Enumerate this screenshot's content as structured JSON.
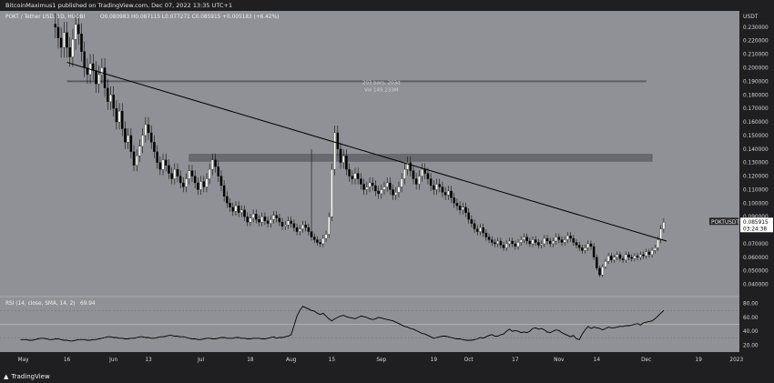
{
  "publisher": "BitcoinMaximus1 published on TradingView.com, Dec 07, 2022 13:35 UTC+1",
  "branding": "TradingView",
  "colors": {
    "background": "#909196",
    "up_candle": "#ffffff",
    "down_candle": "#000000",
    "trendline": "#000000",
    "zone": "#5f6066",
    "rsi_line": "#000000",
    "price_tag": "#ffffff"
  },
  "chart_data": [
    {
      "type": "candlestick",
      "symbol_line": {
        "title": "POKT / Tether USD, 1D, HUOBI",
        "ohlc": "O0.080983  H0.087115  L0.077271  C0.085915  +0.005183 (+6.42%)"
      },
      "price_scale": {
        "currency": "USDT",
        "ylim": [
          0.031,
          0.242
        ],
        "ticks": [
          "0.230000",
          "0.220000",
          "0.210000",
          "0.200000",
          "0.190000",
          "0.180000",
          "0.170000",
          "0.160000",
          "0.150000",
          "0.140000",
          "0.130000",
          "0.120000",
          "0.110000",
          "0.100000",
          "0.090000",
          "0.080000",
          "0.070000",
          "0.060000",
          "0.050000",
          "0.040000"
        ]
      },
      "last_price": {
        "symbol": "POKTUSDT",
        "value": "0.085915",
        "countdown": "03:24:38",
        "price": 0.085915
      },
      "measure": {
        "line1": "203 bars, 203d",
        "line2": "Vol 149.233M",
        "value_price": 0.188
      },
      "horizontal_lines": [
        {
          "price": 0.19,
          "from": "2022-05-16",
          "to": "2022-12-01"
        }
      ],
      "zones": [
        {
          "from_price": 0.131,
          "to_price": 0.136,
          "from": "2022-06-27",
          "to": "2022-12-03"
        }
      ],
      "trendline": {
        "start": [
          "2022-05-16",
          0.204
        ],
        "end": [
          "2022-12-08",
          0.072
        ]
      },
      "x_ticks": [
        "May",
        "16",
        "Jun",
        "13",
        "Jul",
        "18",
        "Aug",
        "15",
        "Sep",
        "19",
        "Oct",
        "17",
        "Nov",
        "14",
        "Dec",
        "19",
        "2023"
      ],
      "x_tick_dates": [
        "2022-05-01",
        "2022-05-16",
        "2022-06-01",
        "2022-06-13",
        "2022-07-01",
        "2022-07-18",
        "2022-08-01",
        "2022-08-15",
        "2022-09-01",
        "2022-09-19",
        "2022-10-01",
        "2022-10-17",
        "2022-11-01",
        "2022-11-14",
        "2022-12-01",
        "2022-12-19",
        "2023-01-01"
      ],
      "x_range": [
        "2022-04-23",
        "2023-01-02"
      ],
      "first_date": "2022-05-12",
      "closes": [
        0.23,
        0.222,
        0.215,
        0.226,
        0.215,
        0.208,
        0.221,
        0.232,
        0.225,
        0.212,
        0.2,
        0.195,
        0.203,
        0.198,
        0.188,
        0.195,
        0.2,
        0.185,
        0.175,
        0.18,
        0.17,
        0.16,
        0.168,
        0.155,
        0.145,
        0.15,
        0.138,
        0.128,
        0.135,
        0.142,
        0.15,
        0.158,
        0.152,
        0.145,
        0.138,
        0.13,
        0.125,
        0.132,
        0.128,
        0.122,
        0.118,
        0.125,
        0.12,
        0.115,
        0.112,
        0.118,
        0.124,
        0.12,
        0.115,
        0.11,
        0.116,
        0.112,
        0.118,
        0.125,
        0.132,
        0.127,
        0.12,
        0.113,
        0.105,
        0.1,
        0.097,
        0.094,
        0.098,
        0.093,
        0.095,
        0.09,
        0.086,
        0.089,
        0.092,
        0.088,
        0.086,
        0.09,
        0.087,
        0.085,
        0.088,
        0.091,
        0.089,
        0.086,
        0.083,
        0.084,
        0.087,
        0.085,
        0.082,
        0.079,
        0.081,
        0.084,
        0.082,
        0.079,
        0.075,
        0.073,
        0.071,
        0.07,
        0.074,
        0.077,
        0.09,
        0.125,
        0.152,
        0.14,
        0.13,
        0.135,
        0.125,
        0.12,
        0.118,
        0.122,
        0.118,
        0.114,
        0.11,
        0.112,
        0.115,
        0.113,
        0.109,
        0.107,
        0.11,
        0.112,
        0.115,
        0.11,
        0.106,
        0.108,
        0.112,
        0.118,
        0.125,
        0.13,
        0.124,
        0.118,
        0.114,
        0.12,
        0.125,
        0.122,
        0.118,
        0.113,
        0.11,
        0.114,
        0.112,
        0.108,
        0.106,
        0.109,
        0.104,
        0.1,
        0.098,
        0.095,
        0.097,
        0.093,
        0.088,
        0.085,
        0.081,
        0.079,
        0.082,
        0.078,
        0.075,
        0.073,
        0.071,
        0.07,
        0.072,
        0.069,
        0.067,
        0.07,
        0.072,
        0.07,
        0.068,
        0.071,
        0.073,
        0.075,
        0.072,
        0.07,
        0.073,
        0.071,
        0.069,
        0.07,
        0.074,
        0.072,
        0.07,
        0.072,
        0.075,
        0.073,
        0.071,
        0.073,
        0.076,
        0.074,
        0.071,
        0.069,
        0.067,
        0.065,
        0.067,
        0.07,
        0.068,
        0.06,
        0.052,
        0.047,
        0.053,
        0.057,
        0.061,
        0.058,
        0.06,
        0.062,
        0.059,
        0.058,
        0.062,
        0.06,
        0.059,
        0.061,
        0.06,
        0.062,
        0.061,
        0.064,
        0.062,
        0.065,
        0.067,
        0.073,
        0.081,
        0.0859
      ]
    },
    {
      "type": "line",
      "title": "RSI (14, close, SMA, 14, 2)",
      "value_label": "69.94",
      "ylim": [
        10,
        90
      ],
      "ticks": [
        "80.00",
        "60.00",
        "40.00",
        "20.00"
      ],
      "bands": [
        70,
        30
      ],
      "mid": 50,
      "values": [
        28,
        28,
        28,
        27,
        27,
        28,
        29,
        30,
        30,
        29,
        28,
        28,
        29,
        29,
        28,
        27,
        27,
        26,
        26,
        27,
        28,
        28,
        28,
        27,
        27,
        28,
        28,
        29,
        30,
        31,
        32,
        32,
        31,
        31,
        30,
        30,
        29,
        29,
        30,
        30,
        31,
        32,
        32,
        31,
        31,
        30,
        30,
        31,
        32,
        32,
        33,
        34,
        34,
        33,
        33,
        32,
        32,
        31,
        30,
        29,
        29,
        28,
        28,
        29,
        30,
        30,
        29,
        29,
        30,
        31,
        31,
        30,
        30,
        30,
        31,
        31,
        30,
        30,
        29,
        29,
        30,
        30,
        30,
        29,
        29,
        30,
        31,
        32,
        30,
        31,
        31,
        32,
        33,
        35,
        48,
        62,
        70,
        76,
        74,
        72,
        70,
        69,
        66,
        64,
        66,
        62,
        58,
        55,
        58,
        60,
        62,
        63,
        61,
        60,
        59,
        58,
        60,
        62,
        61,
        60,
        58,
        57,
        58,
        60,
        59,
        58,
        57,
        56,
        55,
        53,
        51,
        49,
        47,
        46,
        44,
        43,
        41,
        39,
        37,
        36,
        34,
        32,
        30,
        31,
        32,
        33,
        33,
        32,
        31,
        30,
        29,
        29,
        28,
        27,
        27,
        27,
        28,
        29,
        31,
        30,
        32,
        34,
        35,
        33,
        33,
        35,
        36,
        40,
        43,
        40,
        41,
        40,
        38,
        39,
        38,
        40,
        44,
        45,
        43,
        44,
        42,
        39,
        38,
        40,
        42,
        41,
        38,
        36,
        34,
        32,
        34,
        29,
        28,
        36,
        42,
        47,
        44,
        46,
        45,
        44,
        42,
        44,
        46,
        45,
        45,
        46,
        47,
        47,
        48,
        48,
        49,
        50,
        51,
        49,
        52,
        53,
        54,
        55,
        58,
        62,
        66,
        69.94
      ]
    }
  ]
}
